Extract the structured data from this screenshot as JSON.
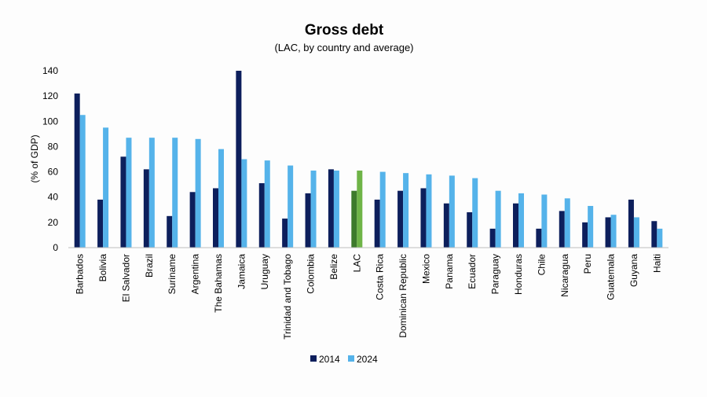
{
  "chart_data": {
    "type": "bar",
    "title": "Gross debt",
    "subtitle": "(LAC, by country and average)",
    "ylabel": "(% of GDP)",
    "xlabel": "",
    "ylim": [
      0,
      140
    ],
    "yticks": [
      0,
      20,
      40,
      60,
      80,
      100,
      120,
      140
    ],
    "grid": false,
    "legend_position": "bottom",
    "categories": [
      "Barbados",
      "Bolivia",
      "El Salvador",
      "Brazil",
      "Suriname",
      "Argentina",
      "The Bahamas",
      "Jamaica",
      "Uruguay",
      "Trinidad and Tobago",
      "Colombia",
      "Belize",
      "LAC",
      "Costa Rica",
      "Dominican Republic",
      "Mexico",
      "Panama",
      "Ecuador",
      "Paraguay",
      "Honduras",
      "Chile",
      "Nicaragua",
      "Peru",
      "Guatemala",
      "Guyana",
      "Haiti"
    ],
    "series": [
      {
        "name": "2014",
        "color": "#0d1f5c",
        "values": [
          122,
          38,
          72,
          62,
          25,
          44,
          47,
          140,
          51,
          23,
          43,
          62,
          45,
          38,
          45,
          47,
          35,
          28,
          15,
          35,
          15,
          29,
          20,
          24,
          38,
          21
        ]
      },
      {
        "name": "2024",
        "color": "#55b3ea",
        "values": [
          105,
          95,
          87,
          87,
          87,
          86,
          78,
          70,
          69,
          65,
          61,
          61,
          61,
          60,
          59,
          58,
          57,
          55,
          45,
          43,
          42,
          39,
          33,
          26,
          24,
          15
        ]
      }
    ],
    "highlight": {
      "category": "LAC",
      "colors": [
        "#3d7a2b",
        "#6fb447"
      ]
    }
  }
}
